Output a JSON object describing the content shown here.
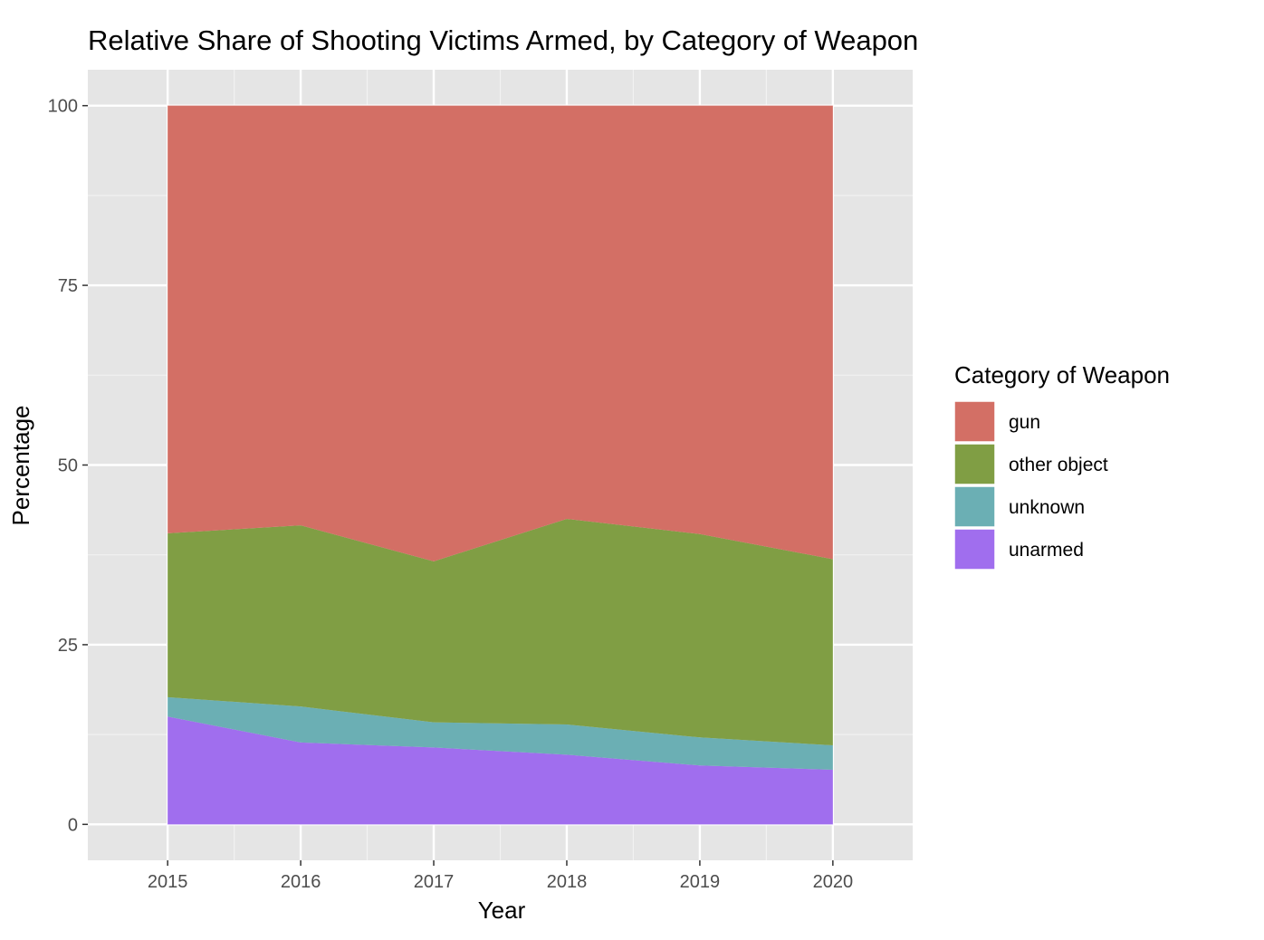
{
  "chart_data": {
    "type": "area",
    "stacked": true,
    "title": "Relative Share of Shooting Victims Armed, by Category of Weapon",
    "xlabel": "Year",
    "ylabel": "Percentage",
    "x": [
      2015,
      2016,
      2017,
      2018,
      2019,
      2020
    ],
    "xlim": [
      2014.4,
      2020.6
    ],
    "ylim": [
      -5,
      105
    ],
    "yticks": [
      0,
      25,
      50,
      75,
      100
    ],
    "grid": true,
    "legend": {
      "title": "Category of Weapon",
      "position": "right"
    },
    "series": [
      {
        "name": "gun",
        "color": "#D36F65",
        "values": [
          59.5,
          58.4,
          63.4,
          57.5,
          59.6,
          63.1
        ]
      },
      {
        "name": "other object",
        "color": "#809E44",
        "values": [
          22.8,
          25.2,
          22.4,
          28.6,
          28.3,
          25.9
        ]
      },
      {
        "name": "unknown",
        "color": "#6BAFB4",
        "values": [
          2.7,
          5.0,
          3.5,
          4.2,
          3.9,
          3.4
        ]
      },
      {
        "name": "unarmed",
        "color": "#A06EEE",
        "values": [
          15.0,
          11.4,
          10.7,
          9.7,
          8.2,
          7.6
        ]
      }
    ]
  }
}
